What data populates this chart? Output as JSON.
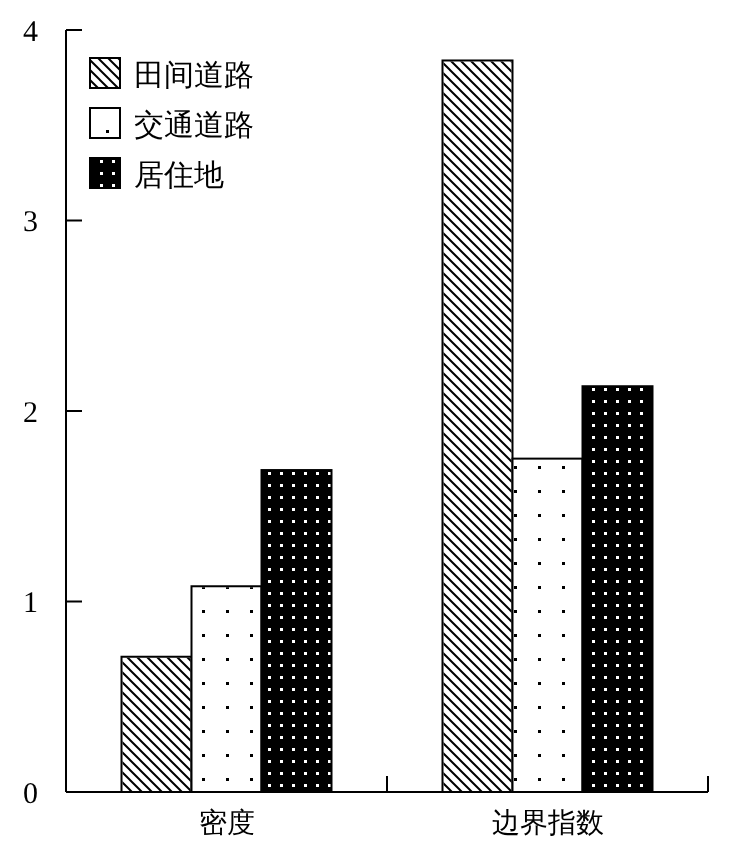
{
  "chart_data": {
    "type": "bar",
    "categories": [
      "密度",
      "边界指数"
    ],
    "series": [
      {
        "name": "田间道路",
        "color": "#ffffff",
        "values": [
          0.71,
          3.84
        ]
      },
      {
        "name": "交通道路",
        "color": "#ffffff",
        "values": [
          1.08,
          1.75
        ]
      },
      {
        "name": "居住地",
        "color": "#000000",
        "values": [
          1.69,
          2.13
        ]
      }
    ],
    "ylim": [
      0,
      4
    ],
    "yticks": [
      0,
      1,
      2,
      3,
      4
    ],
    "grid": false,
    "legend": "top left"
  }
}
